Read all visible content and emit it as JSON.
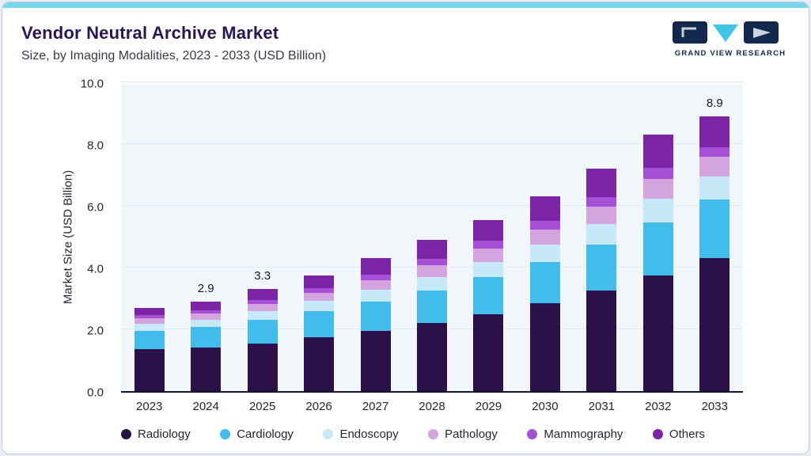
{
  "page": {
    "accent_bar_color": "#78D7EA",
    "card_background": "#FFFFFF",
    "plot_background": "#F0F6FA"
  },
  "header": {
    "title": "Vendor Neutral Archive Market",
    "subtitle": "Size, by Imaging Modalities, 2023 - 2033 (USD Billion)"
  },
  "logo": {
    "text": "GRAND VIEW RESEARCH",
    "navy": "#12284C",
    "cyan": "#3EC6E8"
  },
  "chart_data": {
    "type": "bar",
    "stacked": true,
    "title": "Vendor Neutral Archive Market Size, by Imaging Modalities, 2023 - 2033 (USD Billion)",
    "xlabel": "",
    "ylabel": "Market Size (USD Billion)",
    "ylim": [
      0,
      10
    ],
    "yticks": [
      "0.0",
      "2.0",
      "4.0",
      "6.0",
      "8.0",
      "10.0"
    ],
    "grid": true,
    "legend_position": "bottom",
    "categories": [
      "2023",
      "2024",
      "2025",
      "2026",
      "2027",
      "2028",
      "2029",
      "2030",
      "2031",
      "2032",
      "2033"
    ],
    "series": [
      {
        "name": "Radiology",
        "color": "#2B1147",
        "values": [
          1.35,
          1.42,
          1.55,
          1.75,
          1.95,
          2.2,
          2.5,
          2.85,
          3.25,
          3.75,
          4.3
        ]
      },
      {
        "name": "Cardiology",
        "color": "#42BDEB",
        "values": [
          0.6,
          0.65,
          0.75,
          0.85,
          0.95,
          1.05,
          1.18,
          1.32,
          1.5,
          1.72,
          1.9
        ]
      },
      {
        "name": "Endoscopy",
        "color": "#C6E9F9",
        "values": [
          0.22,
          0.24,
          0.28,
          0.32,
          0.38,
          0.44,
          0.5,
          0.57,
          0.65,
          0.75,
          0.75
        ]
      },
      {
        "name": "Pathology",
        "color": "#D4A4E0",
        "values": [
          0.18,
          0.2,
          0.23,
          0.26,
          0.32,
          0.38,
          0.44,
          0.5,
          0.57,
          0.65,
          0.65
        ]
      },
      {
        "name": "Mammography",
        "color": "#A650D8",
        "values": [
          0.1,
          0.11,
          0.13,
          0.15,
          0.18,
          0.21,
          0.24,
          0.27,
          0.31,
          0.36,
          0.3
        ]
      },
      {
        "name": "Others",
        "color": "#7B24A6",
        "values": [
          0.25,
          0.28,
          0.36,
          0.42,
          0.52,
          0.62,
          0.69,
          0.79,
          0.92,
          1.07,
          1.0
        ]
      }
    ],
    "data_labels": [
      {
        "category": "2024",
        "label": "2.9"
      },
      {
        "category": "2025",
        "label": "3.3"
      },
      {
        "category": "2033",
        "label": "8.9"
      }
    ]
  }
}
